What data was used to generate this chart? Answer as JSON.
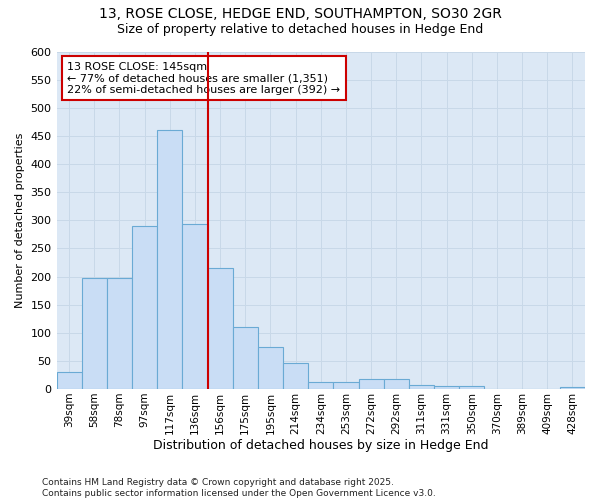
{
  "title1": "13, ROSE CLOSE, HEDGE END, SOUTHAMPTON, SO30 2GR",
  "title2": "Size of property relative to detached houses in Hedge End",
  "xlabel": "Distribution of detached houses by size in Hedge End",
  "ylabel": "Number of detached properties",
  "categories": [
    "39sqm",
    "58sqm",
    "78sqm",
    "97sqm",
    "117sqm",
    "136sqm",
    "156sqm",
    "175sqm",
    "195sqm",
    "214sqm",
    "234sqm",
    "253sqm",
    "272sqm",
    "292sqm",
    "311sqm",
    "331sqm",
    "350sqm",
    "370sqm",
    "389sqm",
    "409sqm",
    "428sqm"
  ],
  "values": [
    30,
    197,
    197,
    290,
    460,
    293,
    215,
    110,
    75,
    47,
    13,
    13,
    17,
    17,
    8,
    5,
    5,
    0,
    0,
    0,
    3
  ],
  "bar_color": "#c9ddf5",
  "bar_edge_color": "#6aaad4",
  "vline_x": 5.5,
  "vline_color": "#cc0000",
  "annotation_title": "13 ROSE CLOSE: 145sqm",
  "annotation_line1": "← 77% of detached houses are smaller (1,351)",
  "annotation_line2": "22% of semi-detached houses are larger (392) →",
  "annotation_box_edge": "#cc0000",
  "ylim": [
    0,
    600
  ],
  "yticks": [
    0,
    50,
    100,
    150,
    200,
    250,
    300,
    350,
    400,
    450,
    500,
    550,
    600
  ],
  "grid_color": "#c8d8e8",
  "bg_color": "#dce8f5",
  "fig_bg_color": "#ffffff",
  "footer1": "Contains HM Land Registry data © Crown copyright and database right 2025.",
  "footer2": "Contains public sector information licensed under the Open Government Licence v3.0."
}
